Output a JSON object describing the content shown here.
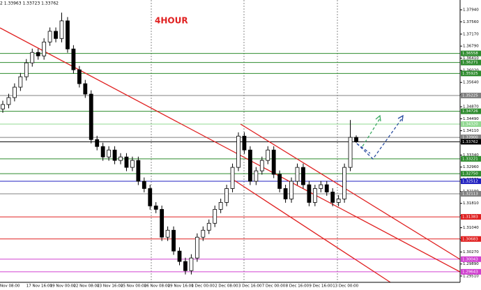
{
  "chart_data": {
    "type": "candlestick",
    "title": "4HOUR",
    "header": "2 1.33963 1.33723 1.33762",
    "categories": [
      "Nov 08:00",
      null,
      null,
      null,
      "17 Nov 16:00",
      null,
      null,
      null,
      "19 Nov 00:00",
      null,
      null,
      null,
      "22 Nov 08:00",
      null,
      null,
      null,
      "23 Nov 16:00",
      null,
      null,
      null,
      "25 Nov 00:00",
      null,
      null,
      null,
      "26 Nov 08:00",
      null,
      null,
      null,
      "29 Nov 16:00",
      null,
      null,
      null,
      "1 Dec 00:00",
      null,
      null,
      null,
      "2 Dec 08:00",
      null,
      null,
      null,
      "3 Dec 16:00",
      null,
      null,
      null,
      "7 Dec 00:00",
      null,
      null,
      null,
      "8 Dec 16:00",
      null,
      null,
      null,
      "9 Dec 16:00",
      null,
      null,
      null,
      "13 Dec 00:00",
      null,
      null,
      null,
      null
    ],
    "open": [
      1.348,
      1.3494,
      1.3516,
      1.3549,
      1.3582,
      1.3626,
      1.3659,
      1.3648,
      1.3692,
      1.3726,
      1.3703,
      1.3759,
      1.367,
      1.3604,
      1.356,
      1.3527,
      1.3383,
      1.3361,
      1.3328,
      1.335,
      1.3317,
      1.3328,
      1.3295,
      1.3317,
      1.3251,
      1.3228,
      1.3173,
      1.3162,
      1.3074,
      1.3096,
      1.303,
      1.2997,
      1.2968,
      1.3008,
      1.3074,
      1.3096,
      1.3118,
      1.3162,
      1.3184,
      1.3228,
      1.3295,
      1.3394,
      1.335,
      1.3251,
      1.3284,
      1.3317,
      1.335,
      1.3273,
      1.3228,
      1.3195,
      1.3251,
      1.3295,
      1.324,
      1.3184,
      1.3228,
      1.324,
      1.3217,
      1.3184,
      1.3195,
      1.3295,
      1.339
    ],
    "high": [
      1.3506,
      1.3528,
      1.3561,
      1.3594,
      1.3638,
      1.3671,
      1.3671,
      1.3704,
      1.3738,
      1.3738,
      1.3785,
      1.3771,
      1.3682,
      1.3616,
      1.3572,
      1.3539,
      1.3395,
      1.3373,
      1.3362,
      1.3362,
      1.334,
      1.334,
      1.3329,
      1.3329,
      1.3263,
      1.324,
      1.3185,
      1.3174,
      1.3108,
      1.3108,
      1.3042,
      1.3009,
      1.302,
      1.3086,
      1.3108,
      1.313,
      1.3174,
      1.3196,
      1.324,
      1.3307,
      1.3406,
      1.3406,
      1.3362,
      1.3296,
      1.3329,
      1.3362,
      1.3362,
      1.3285,
      1.324,
      1.3263,
      1.3307,
      1.3307,
      1.3252,
      1.324,
      1.3252,
      1.3252,
      1.3229,
      1.3207,
      1.3307,
      1.3445,
      1.33963
    ],
    "low": [
      1.3468,
      1.3482,
      1.3504,
      1.3537,
      1.357,
      1.3614,
      1.3636,
      1.3636,
      1.368,
      1.3691,
      1.3691,
      1.3658,
      1.3592,
      1.3548,
      1.3515,
      1.3371,
      1.3349,
      1.3316,
      1.3316,
      1.3305,
      1.3305,
      1.3283,
      1.3283,
      1.3239,
      1.3216,
      1.3161,
      1.315,
      1.3062,
      1.3062,
      1.3018,
      1.2985,
      1.2956,
      1.2956,
      1.2996,
      1.3062,
      1.3084,
      1.3106,
      1.315,
      1.3172,
      1.3216,
      1.3283,
      1.3338,
      1.3239,
      1.3239,
      1.3272,
      1.3305,
      1.3261,
      1.3216,
      1.3183,
      1.3183,
      1.3239,
      1.3228,
      1.3172,
      1.3172,
      1.3216,
      1.3205,
      1.3172,
      1.3172,
      1.3183,
      1.3283,
      1.33723
    ],
    "close": [
      1.3494,
      1.3516,
      1.3549,
      1.3582,
      1.3626,
      1.3659,
      1.3648,
      1.3692,
      1.3726,
      1.3703,
      1.3759,
      1.367,
      1.3604,
      1.356,
      1.3527,
      1.3383,
      1.3361,
      1.3328,
      1.335,
      1.3317,
      1.3328,
      1.3295,
      1.3317,
      1.3251,
      1.3228,
      1.3173,
      1.3162,
      1.3074,
      1.3096,
      1.303,
      1.2997,
      1.2968,
      1.3008,
      1.3074,
      1.3096,
      1.3118,
      1.3162,
      1.3184,
      1.3228,
      1.3295,
      1.3394,
      1.335,
      1.3251,
      1.3284,
      1.3317,
      1.335,
      1.3273,
      1.3228,
      1.3195,
      1.3251,
      1.3295,
      1.324,
      1.3184,
      1.3228,
      1.324,
      1.3217,
      1.3184,
      1.3195,
      1.3295,
      1.339,
      1.33762
    ],
    "ylim": [
      1.2931,
      1.3825
    ],
    "yticks": [
      {
        "value": 1.3794,
        "label": "1.37940"
      },
      {
        "value": 1.3756,
        "label": "1.37560"
      },
      {
        "value": 1.3717,
        "label": "1.37170"
      },
      {
        "value": 1.3679,
        "label": "1.36790"
      },
      {
        "value": 1.3641,
        "label": "1.36410"
      },
      {
        "value": 1.3602,
        "label": "1.36020"
      },
      {
        "value": 1.3564,
        "label": "1.35640"
      },
      {
        "value": 1.3525,
        "label": "1.35250"
      },
      {
        "value": 1.3487,
        "label": "1.34870"
      },
      {
        "value": 1.3449,
        "label": "1.34490"
      },
      {
        "value": 1.3411,
        "label": "1.34110"
      },
      {
        "value": 1.3372,
        "label": "1.33720"
      },
      {
        "value": 1.3334,
        "label": "1.33340"
      },
      {
        "value": 1.3296,
        "label": "1.32960"
      },
      {
        "value": 1.3257,
        "label": "1.32570"
      },
      {
        "value": 1.3219,
        "label": "1.32190"
      },
      {
        "value": 1.3181,
        "label": "1.31810"
      },
      {
        "value": 1.3142,
        "label": "1.31420"
      },
      {
        "value": 1.3104,
        "label": "1.31040"
      },
      {
        "value": 1.3066,
        "label": "1.30660"
      },
      {
        "value": 1.3027,
        "label": "1.30270"
      },
      {
        "value": 1.2989,
        "label": "1.29890"
      },
      {
        "value": 1.2951,
        "label": "1.29510"
      }
    ],
    "levels": [
      {
        "value": 1.36558,
        "label": "1.36558",
        "color": "#2e8b2e"
      },
      {
        "value": 1.36271,
        "label": "1.36271",
        "color": "#2e8b2e"
      },
      {
        "value": 1.35925,
        "label": "1.35925",
        "color": "#2e8b2e"
      },
      {
        "value": 1.35225,
        "label": "1.35225",
        "color": "#808080"
      },
      {
        "value": 1.34726,
        "label": "1.34726",
        "color": "#2e8b2e"
      },
      {
        "value": 1.3432,
        "label": "1.34320",
        "color": "#90d890"
      },
      {
        "value": 1.339,
        "label": "1.33900",
        "color": "#808080"
      },
      {
        "value": 1.33762,
        "label": "1.33762",
        "color": "#000000"
      },
      {
        "value": 1.33221,
        "label": "1.33221",
        "color": "#2e8b2e"
      },
      {
        "value": 1.3275,
        "label": "1.32750",
        "color": "#2e8b2e"
      },
      {
        "value": 1.32512,
        "label": "1.32512",
        "color": "#2020c0"
      },
      {
        "value": 1.32113,
        "label": "1.32113",
        "color": "#808080"
      },
      {
        "value": 1.31383,
        "label": "1.31383",
        "color": "#e02020"
      },
      {
        "value": 1.30683,
        "label": "1.30683",
        "color": "#e02020"
      },
      {
        "value": 1.30043,
        "label": "1.30043",
        "color": "#d040d0"
      },
      {
        "value": 1.29643,
        "label": "1.29643",
        "color": "#d040d0"
      }
    ]
  }
}
